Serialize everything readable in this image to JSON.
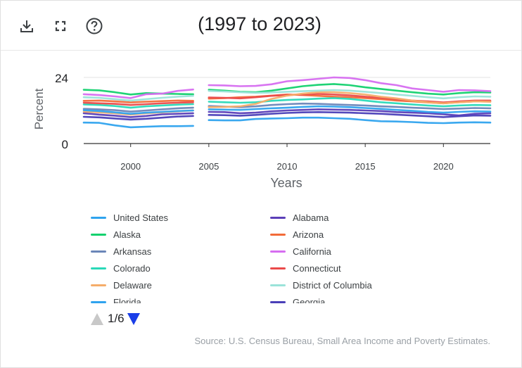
{
  "toolbar": {
    "download_icon": "download-icon",
    "fullscreen_icon": "fullscreen-icon",
    "help_icon": "help-icon"
  },
  "title": "(1997 to 2023)",
  "pager": {
    "label": "1/6"
  },
  "source": "Source: U.S. Census Bureau, Small Area Income and Poverty Estimates.",
  "legend": [
    {
      "name": "United States",
      "color": "#2fa3ee"
    },
    {
      "name": "Alabama",
      "color": "#5b3fb8"
    },
    {
      "name": "Alaska",
      "color": "#13d16e"
    },
    {
      "name": "Arizona",
      "color": "#f26b38"
    },
    {
      "name": "Arkansas",
      "color": "#6b86b8"
    },
    {
      "name": "California",
      "color": "#d66df0"
    },
    {
      "name": "Colorado",
      "color": "#2ad9b8"
    },
    {
      "name": "Connecticut",
      "color": "#ea4a4a"
    },
    {
      "name": "Delaware",
      "color": "#f5ad6a"
    },
    {
      "name": "District of Columbia",
      "color": "#9be3d9"
    },
    {
      "name": "Florida",
      "color": "#2fa3ee"
    },
    {
      "name": "Georgia",
      "color": "#4a3fb8"
    }
  ],
  "chart_data": {
    "type": "line",
    "title": "(1997 to 2023)",
    "xlabel": "Years",
    "ylabel": "Percent",
    "xlim": [
      1997,
      2023
    ],
    "ylim": [
      0,
      24
    ],
    "xticks": [
      2000,
      2005,
      2010,
      2015,
      2020
    ],
    "yticks": [
      0,
      24
    ],
    "grid": "horizontal",
    "legend_position": "bottom",
    "x": [
      1997,
      1998,
      1999,
      2000,
      2001,
      2002,
      2003,
      2004,
      2005,
      2006,
      2007,
      2008,
      2009,
      2010,
      2011,
      2012,
      2013,
      2014,
      2015,
      2016,
      2017,
      2018,
      2019,
      2020,
      2021,
      2022,
      2023
    ],
    "gap_year": 2004.5,
    "series": [
      {
        "name": "United States",
        "color": "#2fa3ee",
        "values": [
          7.6,
          7.5,
          6.6,
          5.9,
          6.1,
          6.3,
          6.3,
          6.4,
          8.5,
          8.4,
          8.4,
          8.9,
          9.1,
          9.2,
          9.4,
          9.4,
          9.2,
          9.0,
          8.5,
          8.1,
          8.0,
          7.8,
          7.5,
          7.4,
          7.6,
          7.7,
          7.6
        ]
      },
      {
        "name": "Alabama",
        "color": "#5b3fb8",
        "values": [
          11.0,
          10.5,
          10.1,
          9.6,
          10.0,
          10.6,
          10.8,
          11.0,
          11.5,
          11.4,
          11.0,
          11.2,
          11.7,
          12.0,
          12.2,
          12.4,
          12.3,
          12.2,
          12.0,
          11.8,
          11.4,
          11.2,
          11.0,
          10.6,
          10.2,
          10.8,
          11.0
        ]
      },
      {
        "name": "Alaska",
        "color": "#13d16e",
        "values": [
          19.5,
          19.3,
          18.6,
          17.8,
          18.3,
          18.1,
          18.0,
          17.9,
          19.5,
          19.2,
          18.8,
          18.6,
          19.2,
          20.0,
          20.8,
          21.3,
          21.6,
          21.2,
          20.4,
          19.8,
          19.2,
          18.6,
          18.1,
          17.8,
          18.3,
          18.6,
          18.5
        ]
      },
      {
        "name": "Arizona",
        "color": "#f26b38",
        "values": [
          15.5,
          15.6,
          15.3,
          14.9,
          15.2,
          15.4,
          15.6,
          15.5,
          16.3,
          16.5,
          16.8,
          17.0,
          17.4,
          17.8,
          17.6,
          17.3,
          17.0,
          16.8,
          16.5,
          16.1,
          15.6,
          15.3,
          14.9,
          14.6,
          15.0,
          15.3,
          15.2
        ]
      },
      {
        "name": "Arkansas",
        "color": "#6b86b8",
        "values": [
          12.6,
          12.4,
          12.1,
          11.6,
          12.0,
          12.4,
          12.8,
          13.0,
          13.6,
          13.4,
          13.2,
          13.5,
          14.0,
          14.3,
          14.5,
          14.4,
          14.2,
          14.0,
          13.8,
          13.5,
          13.3,
          13.0,
          12.8,
          12.5,
          12.7,
          12.9,
          12.8
        ]
      },
      {
        "name": "California",
        "color": "#d66df0",
        "values": [
          17.9,
          17.6,
          17.1,
          16.5,
          17.9,
          18.1,
          19.1,
          19.6,
          21.2,
          21.1,
          20.8,
          20.9,
          21.5,
          22.6,
          23.0,
          23.5,
          24.0,
          23.8,
          23.0,
          21.9,
          21.2,
          20.0,
          19.4,
          18.8,
          19.4,
          19.3,
          19.0
        ]
      },
      {
        "name": "Colorado",
        "color": "#2ad9b8",
        "values": [
          14.2,
          14.0,
          13.6,
          13.0,
          13.5,
          13.8,
          14.1,
          14.3,
          15.2,
          15.0,
          14.8,
          15.0,
          15.5,
          15.8,
          16.0,
          16.3,
          16.5,
          16.2,
          15.6,
          15.0,
          14.6,
          14.2,
          13.8,
          13.5,
          13.8,
          14.0,
          13.9
        ]
      },
      {
        "name": "Connecticut",
        "color": "#ea4a4a",
        "values": [
          14.8,
          14.6,
          14.4,
          14.0,
          14.3,
          14.6,
          14.8,
          15.0,
          16.7,
          16.6,
          16.4,
          16.8,
          17.3,
          17.6,
          17.8,
          18.0,
          17.8,
          17.5,
          17.0,
          16.6,
          16.1,
          15.6,
          15.3,
          14.9,
          15.3,
          15.6,
          15.6
        ]
      },
      {
        "name": "Delaware",
        "color": "#f5ad6a",
        "values": [
          11.6,
          11.3,
          11.0,
          10.5,
          11.0,
          11.3,
          11.7,
          12.0,
          13.2,
          13.3,
          13.5,
          14.4,
          16.2,
          17.4,
          18.1,
          18.6,
          18.6,
          18.3,
          17.8,
          17.0,
          16.4,
          15.6,
          15.0,
          14.6,
          15.0,
          15.3,
          15.2
        ]
      },
      {
        "name": "District of Columbia",
        "color": "#9be3d9",
        "values": [
          16.8,
          16.6,
          16.1,
          15.6,
          16.1,
          16.6,
          17.0,
          17.3,
          19.1,
          18.9,
          18.6,
          18.4,
          18.5,
          18.8,
          19.0,
          19.2,
          19.4,
          19.2,
          18.8,
          18.3,
          17.8,
          17.3,
          16.8,
          16.4,
          16.8,
          17.1,
          17.0
        ]
      },
      {
        "name": "Florida",
        "color": "#2fa3ee",
        "values": [
          12.1,
          11.8,
          11.3,
          10.8,
          11.2,
          11.5,
          11.8,
          12.0,
          12.4,
          12.3,
          12.2,
          12.5,
          12.8,
          13.0,
          13.3,
          13.5,
          13.4,
          13.2,
          12.9,
          12.6,
          12.2,
          11.9,
          11.5,
          11.2,
          11.5,
          11.7,
          11.6
        ]
      },
      {
        "name": "Georgia",
        "color": "#4a3fb8",
        "values": [
          9.7,
          9.5,
          9.1,
          8.7,
          9.0,
          9.4,
          9.8,
          10.0,
          10.4,
          10.3,
          10.1,
          10.4,
          10.8,
          11.1,
          11.3,
          11.4,
          11.3,
          11.2,
          11.0,
          10.8,
          10.5,
          10.2,
          9.9,
          9.6,
          9.9,
          10.2,
          10.1
        ]
      }
    ]
  }
}
